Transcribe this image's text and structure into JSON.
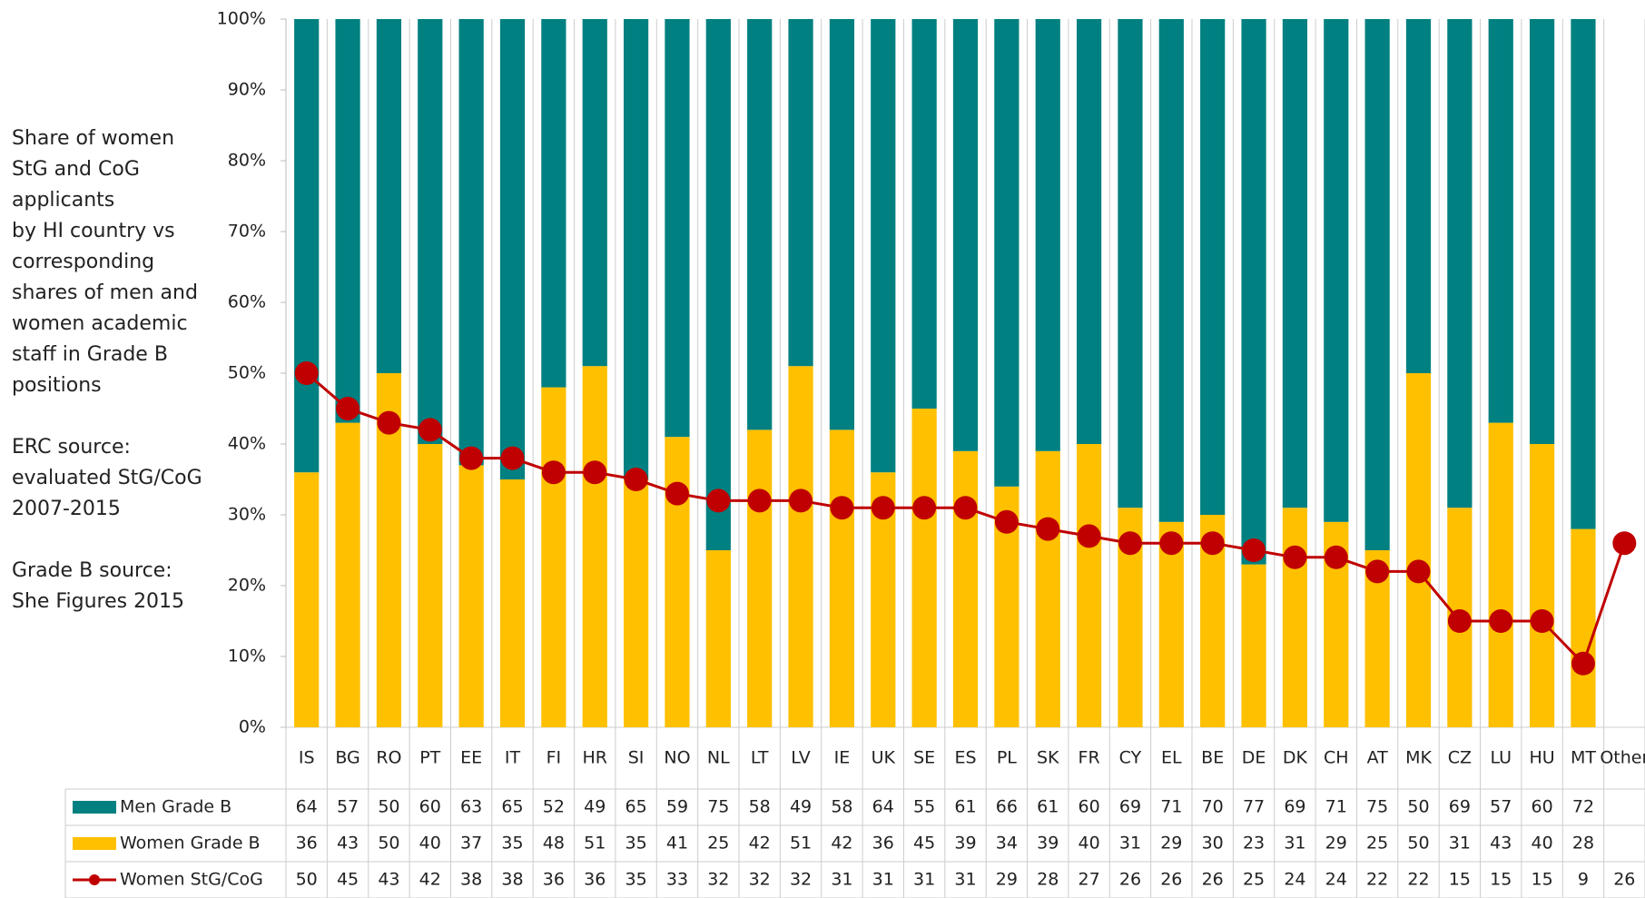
{
  "chart_data": {
    "type": "bar_line_table",
    "annotations": [
      [
        "Share of women",
        "StG and CoG",
        " applicants",
        "by HI country vs",
        "corresponding",
        "shares of men and",
        "women academic",
        "staff in Grade B",
        "positions"
      ],
      [
        "ERC source:",
        "evaluated StG/CoG",
        "2007-2015"
      ],
      [
        "Grade B source:",
        "She Figures 2015"
      ]
    ],
    "categories": [
      "IS",
      "BG",
      "RO",
      "PT",
      "EE",
      "IT",
      "FI",
      "HR",
      "SI",
      "NO",
      "NL",
      "LT",
      "LV",
      "IE",
      "UK",
      "SE",
      "ES",
      "PL",
      "SK",
      "FR",
      "CY",
      "EL",
      "BE",
      "DE",
      "DK",
      "CH",
      "AT",
      "MK",
      "CZ",
      "LU",
      "HU",
      "MT",
      "Other"
    ],
    "series": [
      {
        "name": "Men Grade B",
        "color": "#008080",
        "stack": true,
        "values": [
          64,
          57,
          50,
          60,
          63,
          65,
          52,
          49,
          65,
          59,
          75,
          58,
          49,
          58,
          64,
          55,
          61,
          66,
          61,
          60,
          69,
          71,
          70,
          77,
          69,
          71,
          75,
          50,
          69,
          57,
          60,
          72,
          null
        ]
      },
      {
        "name": "Women Grade B",
        "color": "#FFC000",
        "stack": true,
        "values": [
          36,
          43,
          50,
          40,
          37,
          35,
          48,
          51,
          35,
          41,
          25,
          42,
          51,
          42,
          36,
          45,
          39,
          34,
          39,
          40,
          31,
          29,
          30,
          23,
          31,
          29,
          25,
          50,
          31,
          43,
          40,
          28,
          null
        ]
      },
      {
        "name": "Women StG/CoG",
        "color": "#C00000",
        "type": "line",
        "values": [
          50,
          45,
          43,
          42,
          38,
          38,
          36,
          36,
          35,
          33,
          32,
          32,
          32,
          31,
          31,
          31,
          31,
          29,
          28,
          27,
          26,
          26,
          26,
          25,
          24,
          24,
          22,
          22,
          15,
          15,
          15,
          9,
          26
        ]
      }
    ],
    "ylim": [
      0,
      100
    ],
    "yticks": [
      {
        "value": 0,
        "label": "0%"
      },
      {
        "value": 10,
        "label": "10%"
      },
      {
        "value": 20,
        "label": "20%"
      },
      {
        "value": 30,
        "label": "30%"
      },
      {
        "value": 40,
        "label": "40%"
      },
      {
        "value": 50,
        "label": "50%"
      },
      {
        "value": 60,
        "label": "60%"
      },
      {
        "value": 70,
        "label": "70%"
      },
      {
        "value": 80,
        "label": "80%"
      },
      {
        "value": 90,
        "label": "90%"
      },
      {
        "value": 100,
        "label": "100%"
      }
    ]
  }
}
